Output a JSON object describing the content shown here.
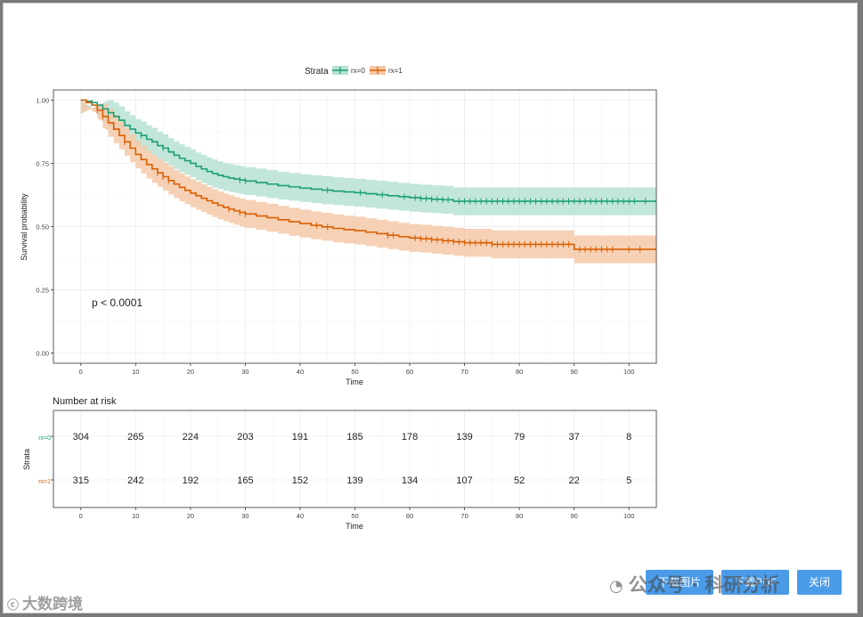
{
  "chart_data": {
    "type": "line",
    "subtype": "kaplan-meier survival curve with confidence bands and risk table",
    "legend": {
      "title": "Strata",
      "position": "top",
      "entries": [
        "rx=0",
        "rx=1"
      ]
    },
    "ylabel": "Survival probability",
    "xlabel": "Time",
    "xlim": [
      -5,
      105
    ],
    "ylim": [
      -0.04,
      1.04
    ],
    "x_ticks": [
      0,
      10,
      20,
      30,
      40,
      50,
      60,
      70,
      80,
      90,
      100
    ],
    "y_ticks": [
      0.0,
      0.25,
      0.5,
      0.75,
      1.0
    ],
    "y_tick_labels": [
      "0.00",
      "0.25",
      "0.50",
      "0.75",
      "1.00"
    ],
    "grid": true,
    "annotation": "p < 0.0001",
    "series": [
      {
        "name": "rx=0",
        "color": "#1b9e77",
        "fill": "#b7e2d3",
        "steps": [
          [
            0,
            1.0
          ],
          [
            1,
            0.995
          ],
          [
            2,
            0.99
          ],
          [
            3,
            0.98
          ],
          [
            4,
            0.965
          ],
          [
            5,
            0.95
          ],
          [
            6,
            0.935
          ],
          [
            7,
            0.92
          ],
          [
            8,
            0.9
          ],
          [
            9,
            0.885
          ],
          [
            10,
            0.87
          ],
          [
            11,
            0.86
          ],
          [
            12,
            0.845
          ],
          [
            13,
            0.835
          ],
          [
            14,
            0.82
          ],
          [
            15,
            0.81
          ],
          [
            16,
            0.795
          ],
          [
            17,
            0.782
          ],
          [
            18,
            0.77
          ],
          [
            19,
            0.76
          ],
          [
            20,
            0.75
          ],
          [
            21,
            0.738
          ],
          [
            22,
            0.728
          ],
          [
            23,
            0.718
          ],
          [
            24,
            0.71
          ],
          [
            25,
            0.703
          ],
          [
            26,
            0.697
          ],
          [
            27,
            0.692
          ],
          [
            28,
            0.688
          ],
          [
            29,
            0.684
          ],
          [
            30,
            0.68
          ],
          [
            32,
            0.674
          ],
          [
            34,
            0.668
          ],
          [
            36,
            0.662
          ],
          [
            38,
            0.657
          ],
          [
            40,
            0.652
          ],
          [
            42,
            0.648
          ],
          [
            44,
            0.644
          ],
          [
            46,
            0.64
          ],
          [
            48,
            0.637
          ],
          [
            50,
            0.634
          ],
          [
            52,
            0.63
          ],
          [
            54,
            0.626
          ],
          [
            56,
            0.622
          ],
          [
            58,
            0.618
          ],
          [
            60,
            0.614
          ],
          [
            62,
            0.611
          ],
          [
            64,
            0.608
          ],
          [
            66,
            0.606
          ],
          [
            68,
            0.6
          ],
          [
            105,
            0.6
          ]
        ],
        "ci_half_width": 0.055,
        "censor_times": [
          2,
          5,
          11,
          15,
          29,
          30,
          45,
          51,
          55,
          59,
          61,
          62,
          63,
          64,
          65,
          66,
          67,
          69,
          70,
          71,
          72,
          73,
          74,
          75,
          76,
          77,
          78,
          79,
          80,
          81,
          82,
          83,
          84,
          85,
          86,
          87,
          88,
          89,
          90,
          91,
          92,
          93,
          94,
          95,
          96,
          97,
          98,
          99,
          100,
          101,
          103
        ],
        "number_at_risk": [
          304,
          265,
          224,
          203,
          191,
          185,
          178,
          139,
          79,
          37,
          8
        ]
      },
      {
        "name": "rx=1",
        "color": "#d95f02",
        "fill": "#f5c9a8",
        "steps": [
          [
            0,
            1.0
          ],
          [
            1,
            0.99
          ],
          [
            2,
            0.98
          ],
          [
            3,
            0.96
          ],
          [
            4,
            0.935
          ],
          [
            5,
            0.91
          ],
          [
            6,
            0.885
          ],
          [
            7,
            0.86
          ],
          [
            8,
            0.835
          ],
          [
            9,
            0.81
          ],
          [
            10,
            0.785
          ],
          [
            11,
            0.765
          ],
          [
            12,
            0.745
          ],
          [
            13,
            0.728
          ],
          [
            14,
            0.712
          ],
          [
            15,
            0.697
          ],
          [
            16,
            0.682
          ],
          [
            17,
            0.668
          ],
          [
            18,
            0.655
          ],
          [
            19,
            0.643
          ],
          [
            20,
            0.632
          ],
          [
            21,
            0.622
          ],
          [
            22,
            0.612
          ],
          [
            23,
            0.602
          ],
          [
            24,
            0.593
          ],
          [
            25,
            0.584
          ],
          [
            26,
            0.576
          ],
          [
            27,
            0.569
          ],
          [
            28,
            0.562
          ],
          [
            29,
            0.556
          ],
          [
            30,
            0.55
          ],
          [
            32,
            0.542
          ],
          [
            34,
            0.535
          ],
          [
            36,
            0.527
          ],
          [
            38,
            0.519
          ],
          [
            40,
            0.512
          ],
          [
            42,
            0.505
          ],
          [
            44,
            0.499
          ],
          [
            46,
            0.493
          ],
          [
            48,
            0.488
          ],
          [
            50,
            0.484
          ],
          [
            52,
            0.478
          ],
          [
            54,
            0.472
          ],
          [
            56,
            0.466
          ],
          [
            58,
            0.46
          ],
          [
            60,
            0.455
          ],
          [
            62,
            0.452
          ],
          [
            64,
            0.448
          ],
          [
            66,
            0.444
          ],
          [
            68,
            0.44
          ],
          [
            70,
            0.436
          ],
          [
            75,
            0.43
          ],
          [
            80,
            0.43
          ],
          [
            90,
            0.41
          ],
          [
            105,
            0.41
          ]
        ],
        "ci_half_width": 0.055,
        "censor_times": [
          3,
          4,
          8,
          14,
          15,
          16,
          27,
          29,
          30,
          43,
          45,
          56,
          57,
          61,
          62,
          63,
          64,
          65,
          66,
          67,
          68,
          69,
          70,
          71,
          72,
          73,
          74,
          75,
          76,
          77,
          78,
          79,
          80,
          81,
          82,
          83,
          84,
          85,
          86,
          87,
          88,
          89,
          91,
          92,
          93,
          94,
          95,
          96,
          97,
          100,
          102
        ],
        "number_at_risk": [
          315,
          242,
          192,
          165,
          152,
          139,
          134,
          107,
          52,
          22,
          5
        ]
      }
    ],
    "risk_table": {
      "title": "Number at risk",
      "ylabel": "Strata",
      "xlabel": "Time",
      "times": [
        0,
        10,
        20,
        30,
        40,
        50,
        60,
        70,
        80,
        90,
        100
      ]
    }
  },
  "buttons": {
    "download_image": "下载图片",
    "download_pdf": "下载PDF",
    "close": "关闭"
  },
  "watermarks": {
    "left": "大数跨境",
    "right": "公众号 · 科研分析"
  }
}
